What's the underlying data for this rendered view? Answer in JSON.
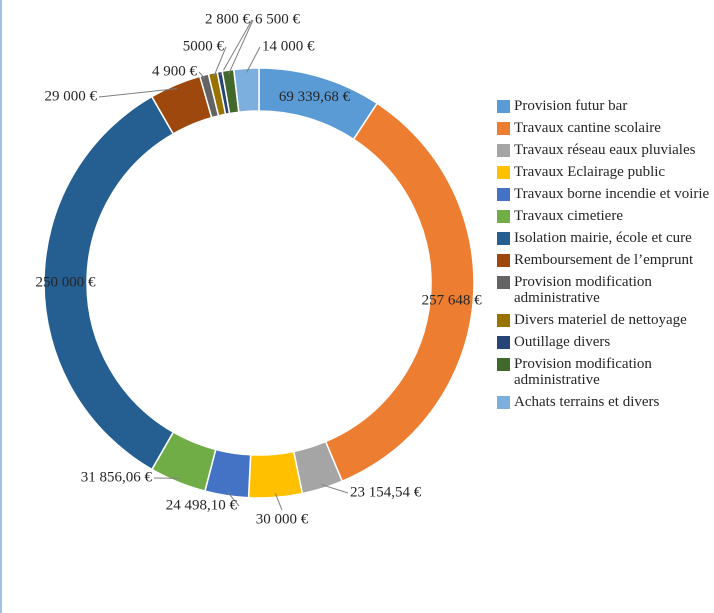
{
  "chart_data": {
    "type": "pie",
    "categories": [
      "Provision futur bar",
      "Travaux cantine scolaire",
      "Travaux réseau eaux pluviales",
      "Travaux Eclairage public",
      "Travaux borne incendie et voirie",
      "Travaux cimetiere",
      "Isolation mairie, école et cure",
      "Remboursement de l’emprunt",
      "Provision modification administrative",
      "Divers materiel de nettoyage",
      "Outillage divers",
      "Provision modification administrative",
      "Achats terrains et divers"
    ],
    "values": [
      69339.68,
      257648,
      23154.54,
      30000,
      24498.1,
      31856.06,
      250000,
      29000,
      4900,
      5000,
      2800,
      6500,
      14000
    ],
    "value_labels": [
      "69 339,68 €",
      "257 648 €",
      "23 154,54 €",
      "30 000 €",
      "24 498,10 €",
      "31 856,06 €",
      "250 000 €",
      "29 000 €",
      "4 900 €",
      "5000 €",
      "2 800 €",
      "6 500 €",
      "14 000 €"
    ],
    "colors": [
      "#5b9bd5",
      "#ed7d31",
      "#a5a5a5",
      "#ffc000",
      "#4472c4",
      "#70ad47",
      "#255e91",
      "#9e480e",
      "#636363",
      "#997300",
      "#264478",
      "#43682b",
      "#7cafdd"
    ],
    "donut": true,
    "legend": "right"
  }
}
